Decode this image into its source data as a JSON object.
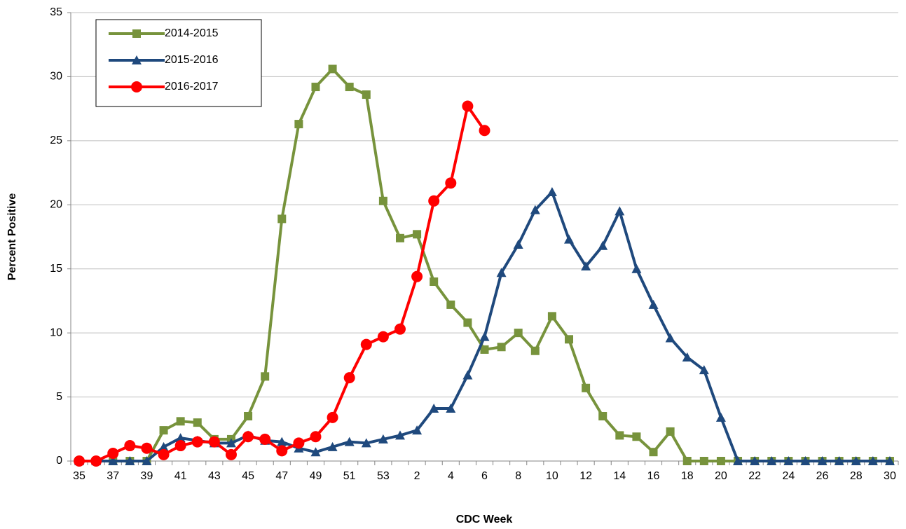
{
  "chart_data": {
    "type": "line",
    "x_label": "CDC Week",
    "y_label": "Percent Positive",
    "categories": [
      "35",
      null,
      "37",
      null,
      "39",
      null,
      "41",
      null,
      "43",
      null,
      "45",
      null,
      "47",
      null,
      "49",
      null,
      "51",
      null,
      "53",
      null,
      "2",
      null,
      "4",
      null,
      "6",
      null,
      "8",
      null,
      "10",
      null,
      "12",
      null,
      "14",
      null,
      "16",
      null,
      "18",
      null,
      "20",
      null,
      "22",
      null,
      "24",
      null,
      "26",
      null,
      "28",
      null,
      "30"
    ],
    "series": [
      {
        "name": "2014-2015",
        "color": "#77933c",
        "marker": "square",
        "values": [
          0,
          0,
          0,
          0,
          0,
          2.4,
          3.1,
          3.0,
          1.7,
          1.7,
          3.5,
          6.6,
          18.9,
          26.3,
          29.2,
          30.6,
          29.2,
          28.6,
          20.3,
          17.4,
          17.7,
          14.0,
          12.2,
          10.8,
          8.7,
          8.9,
          10.0,
          8.6,
          11.3,
          9.5,
          5.7,
          3.5,
          2.0,
          1.9,
          0.7,
          2.3,
          0,
          0,
          0,
          0,
          0,
          0,
          0,
          0,
          0,
          0,
          0,
          0,
          0
        ]
      },
      {
        "name": "2015-2016",
        "color": "#1f497d",
        "marker": "triangle",
        "values": [
          0,
          0,
          0,
          0,
          0,
          1.1,
          1.8,
          1.6,
          1.4,
          1.4,
          2.0,
          1.6,
          1.5,
          1.0,
          0.7,
          1.1,
          1.5,
          1.4,
          1.7,
          2.0,
          2.4,
          4.1,
          4.1,
          6.7,
          9.7,
          14.7,
          16.9,
          19.6,
          21.0,
          17.3,
          15.2,
          16.8,
          19.5,
          15.0,
          12.2,
          9.6,
          8.1,
          7.1,
          3.4,
          0,
          0,
          0,
          0,
          0,
          0,
          0,
          0,
          0,
          0
        ]
      },
      {
        "name": "2016-2017",
        "color": "#ff0000",
        "marker": "circle",
        "values": [
          0,
          0,
          0.6,
          1.2,
          1.0,
          0.5,
          1.2,
          1.5,
          1.5,
          0.5,
          1.9,
          1.7,
          0.8,
          1.4,
          1.9,
          3.4,
          6.5,
          9.1,
          9.7,
          10.3,
          14.4,
          20.3,
          21.7,
          27.7,
          25.8,
          null,
          null,
          null,
          null,
          null,
          null,
          null,
          null,
          null,
          null,
          null,
          null,
          null,
          null,
          null,
          null,
          null,
          null,
          null,
          null,
          null,
          null,
          null,
          null
        ]
      }
    ],
    "ylim": [
      0,
      35
    ],
    "yticks": [
      0,
      5,
      10,
      15,
      20,
      25,
      30,
      35
    ],
    "grid": true,
    "legend": "upper left"
  }
}
